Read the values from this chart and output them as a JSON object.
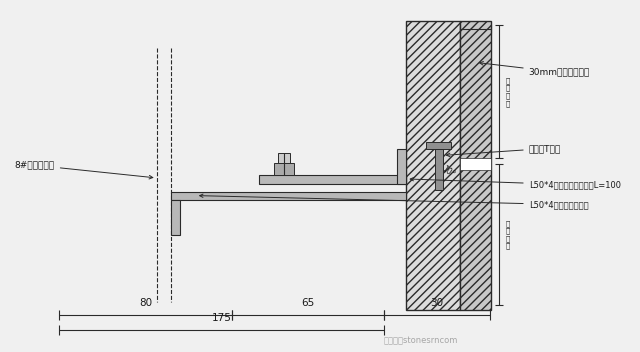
{
  "bg_color": "#f0f0f0",
  "line_color": "#2a2a2a",
  "text_color": "#1a1a1a",
  "label_left": "8#热镀锌槽钢",
  "label_stone": "30mm厚花岗岩石材",
  "label_t_bracket": "不锈钢T挂件",
  "label_transfer": "L50*4热镀锌角钢转接件L=100",
  "label_frame": "L50*4热镀锌角钢幕架",
  "dim_80": "80",
  "dim_65": "65",
  "dim_30": "30",
  "dim_175": "175",
  "watermark": "微信号：stonesrncom"
}
